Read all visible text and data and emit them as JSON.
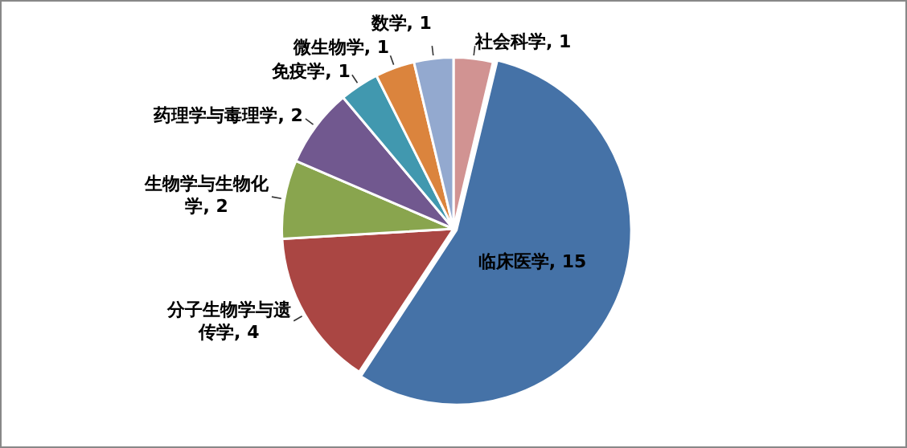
{
  "chart_data": {
    "type": "pie",
    "categories": [
      "社会科学",
      "临床医学",
      "分子生物学与遗传学",
      "生物学与生物化学",
      "药理学与毒理学",
      "免疫学",
      "微生物学",
      "数学"
    ],
    "values": [
      1,
      15,
      4,
      2,
      2,
      1,
      1,
      1
    ],
    "colors": [
      "#d19392",
      "#4572a7",
      "#aa4643",
      "#89a54e",
      "#71588f",
      "#4198af",
      "#db843d",
      "#93a9cf"
    ],
    "value_labels": [
      ", 1",
      ", 15",
      ", 4",
      ", 2",
      ", 2",
      ", 1",
      ", 1",
      ", 1"
    ],
    "legend": false
  }
}
